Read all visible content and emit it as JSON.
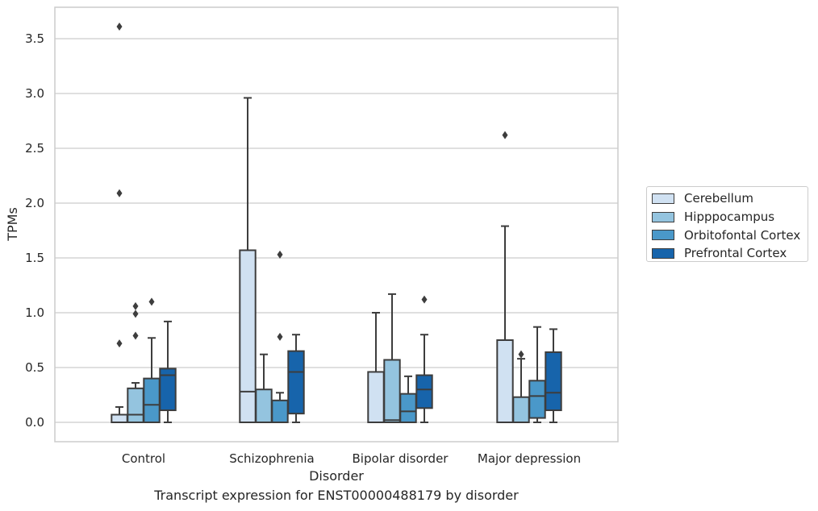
{
  "caption": "Transcript expression for ENST00000488179 by disorder",
  "chart_data": {
    "type": "box",
    "xlabel": "Disorder",
    "ylabel": "TPMs",
    "ylim": [
      -0.17,
      3.78
    ],
    "yticks": [
      "0.0",
      "0.5",
      "1.0",
      "1.5",
      "2.0",
      "2.5",
      "3.0",
      "3.5"
    ],
    "categories": [
      "Control",
      "Schizophrenia",
      "Bipolar disorder",
      "Major depression"
    ],
    "grid": "horizontal",
    "legend_position": "right",
    "series": [
      {
        "name": "Cerebellum",
        "color": "#d0e1f2",
        "boxes": [
          {
            "whisker_low": 0.0,
            "q1": 0.0,
            "median": 0.0,
            "q3": 0.07,
            "whisker_high": 0.14,
            "outliers": [
              0.72,
              2.09,
              3.61
            ]
          },
          {
            "whisker_low": 0.0,
            "q1": 0.0,
            "median": 0.28,
            "q3": 1.57,
            "whisker_high": 2.96,
            "outliers": []
          },
          {
            "whisker_low": 0.0,
            "q1": 0.0,
            "median": 0.0,
            "q3": 0.46,
            "whisker_high": 1.0,
            "outliers": []
          },
          {
            "whisker_low": 0.0,
            "q1": 0.0,
            "median": 0.0,
            "q3": 0.75,
            "whisker_high": 1.79,
            "outliers": [
              2.62
            ]
          }
        ]
      },
      {
        "name": "Hipppocampus",
        "color": "#94c4df",
        "boxes": [
          {
            "whisker_low": 0.0,
            "q1": 0.0,
            "median": 0.07,
            "q3": 0.31,
            "whisker_high": 0.36,
            "outliers": [
              0.79,
              0.99,
              1.06
            ]
          },
          {
            "whisker_low": 0.0,
            "q1": 0.0,
            "median": 0.0,
            "q3": 0.3,
            "whisker_high": 0.62,
            "outliers": []
          },
          {
            "whisker_low": 0.0,
            "q1": 0.0,
            "median": 0.02,
            "q3": 0.57,
            "whisker_high": 1.17,
            "outliers": []
          },
          {
            "whisker_low": 0.0,
            "q1": 0.0,
            "median": 0.0,
            "q3": 0.23,
            "whisker_high": 0.58,
            "outliers": [
              0.62
            ]
          }
        ]
      },
      {
        "name": "Orbitofontal Cortex",
        "color": "#4a98c9",
        "boxes": [
          {
            "whisker_low": 0.0,
            "q1": 0.0,
            "median": 0.16,
            "q3": 0.4,
            "whisker_high": 0.77,
            "outliers": [
              1.1
            ]
          },
          {
            "whisker_low": 0.0,
            "q1": 0.0,
            "median": 0.0,
            "q3": 0.2,
            "whisker_high": 0.27,
            "outliers": [
              0.78,
              1.53
            ]
          },
          {
            "whisker_low": 0.0,
            "q1": 0.0,
            "median": 0.1,
            "q3": 0.26,
            "whisker_high": 0.42,
            "outliers": []
          },
          {
            "whisker_low": 0.0,
            "q1": 0.04,
            "median": 0.24,
            "q3": 0.38,
            "whisker_high": 0.87,
            "outliers": []
          }
        ]
      },
      {
        "name": "Prefrontal Cortex",
        "color": "#1764ab",
        "boxes": [
          {
            "whisker_low": 0.0,
            "q1": 0.11,
            "median": 0.43,
            "q3": 0.49,
            "whisker_high": 0.92,
            "outliers": []
          },
          {
            "whisker_low": 0.0,
            "q1": 0.08,
            "median": 0.46,
            "q3": 0.65,
            "whisker_high": 0.8,
            "outliers": []
          },
          {
            "whisker_low": 0.0,
            "q1": 0.13,
            "median": 0.3,
            "q3": 0.43,
            "whisker_high": 0.8,
            "outliers": [
              1.12
            ]
          },
          {
            "whisker_low": 0.0,
            "q1": 0.11,
            "median": 0.27,
            "q3": 0.64,
            "whisker_high": 0.85,
            "outliers": []
          }
        ]
      }
    ]
  }
}
